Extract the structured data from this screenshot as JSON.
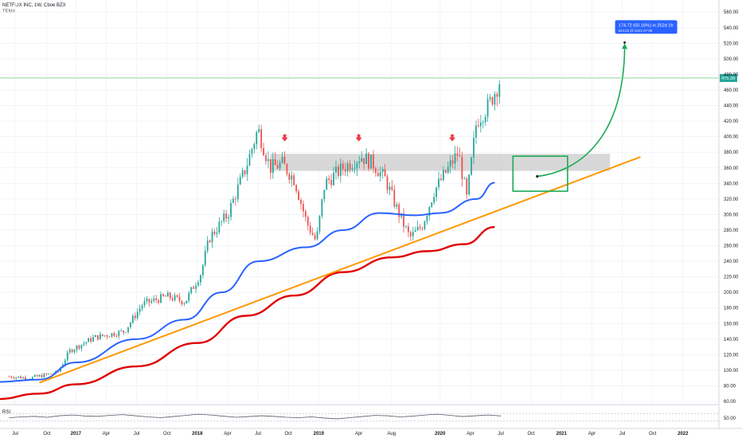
{
  "header": {
    "symbol_line": "NETFLIX INC, 1W, Cboe BZX",
    "indicator": "TEMA"
  },
  "rsi_panel": {
    "label": "RSI",
    "scale_label": "50.00"
  },
  "chart_data": {
    "type": "candlestick",
    "title": "NETFLIX INC, 1W, Cboe BZX",
    "y_axis": {
      "min": 40,
      "max": 570,
      "side": "right",
      "ticks": [
        "560.00",
        "540.00",
        "520.00",
        "500.00",
        "480.00",
        "460.00",
        "440.00",
        "420.00",
        "400.00",
        "380.00",
        "360.00",
        "340.00",
        "320.00",
        "300.00",
        "280.00",
        "260.00",
        "240.00",
        "220.00",
        "200.00",
        "180.00",
        "160.00",
        "140.00",
        "120.00",
        "100.00",
        "80.00",
        "60.00"
      ]
    },
    "x_axis": {
      "ticks": [
        "Jul",
        "Oct",
        "2017",
        "Apr",
        "Jul",
        "Oct",
        "2018",
        "Apr",
        "Jul",
        "Oct",
        "2019",
        "Apr",
        "Aug",
        "2020",
        "Apr",
        "Jul",
        "Oct",
        "2021",
        "Apr",
        "Jul",
        "Oct",
        "2022"
      ],
      "bold_ticks": [
        "2017",
        "2018",
        "2019",
        "2020",
        "2021",
        "2022"
      ]
    },
    "grid": true,
    "last_price_label": "475.39",
    "last_price": 475.39,
    "projection_label": "174.72 (50.16%) in 252d 1h",
    "projection_sublabel": "523.03 @ 2021-07-05",
    "price_series": [
      {
        "t": 2016.45,
        "v": 92
      },
      {
        "t": 2016.62,
        "v": 90
      },
      {
        "t": 2016.85,
        "v": 97
      },
      {
        "t": 2016.95,
        "v": 125
      },
      {
        "t": 2017.15,
        "v": 142
      },
      {
        "t": 2017.4,
        "v": 150
      },
      {
        "t": 2017.55,
        "v": 185
      },
      {
        "t": 2017.75,
        "v": 195
      },
      {
        "t": 2017.9,
        "v": 188
      },
      {
        "t": 2018.03,
        "v": 225
      },
      {
        "t": 2018.1,
        "v": 270
      },
      {
        "t": 2018.25,
        "v": 300
      },
      {
        "t": 2018.4,
        "v": 360
      },
      {
        "t": 2018.5,
        "v": 410
      },
      {
        "t": 2018.6,
        "v": 360
      },
      {
        "t": 2018.7,
        "v": 365
      },
      {
        "t": 2018.8,
        "v": 345
      },
      {
        "t": 2018.9,
        "v": 290
      },
      {
        "t": 2018.98,
        "v": 265
      },
      {
        "t": 2019.05,
        "v": 340
      },
      {
        "t": 2019.2,
        "v": 360
      },
      {
        "t": 2019.35,
        "v": 375
      },
      {
        "t": 2019.45,
        "v": 365
      },
      {
        "t": 2019.55,
        "v": 345
      },
      {
        "t": 2019.65,
        "v": 305
      },
      {
        "t": 2019.75,
        "v": 270
      },
      {
        "t": 2019.85,
        "v": 285
      },
      {
        "t": 2019.95,
        "v": 330
      },
      {
        "t": 2020.05,
        "v": 355
      },
      {
        "t": 2020.15,
        "v": 380
      },
      {
        "t": 2020.22,
        "v": 320
      },
      {
        "t": 2020.3,
        "v": 420
      },
      {
        "t": 2020.4,
        "v": 440
      },
      {
        "t": 2020.5,
        "v": 475
      }
    ],
    "ma_blue": [
      {
        "t": 2016.35,
        "v": 85
      },
      {
        "t": 2016.7,
        "v": 88
      },
      {
        "t": 2017.0,
        "v": 110
      },
      {
        "t": 2017.5,
        "v": 140
      },
      {
        "t": 2017.9,
        "v": 165
      },
      {
        "t": 2018.2,
        "v": 200
      },
      {
        "t": 2018.5,
        "v": 240
      },
      {
        "t": 2018.9,
        "v": 258
      },
      {
        "t": 2019.2,
        "v": 280
      },
      {
        "t": 2019.5,
        "v": 302
      },
      {
        "t": 2019.8,
        "v": 299
      },
      {
        "t": 2020.0,
        "v": 302
      },
      {
        "t": 2020.3,
        "v": 320
      },
      {
        "t": 2020.45,
        "v": 341
      }
    ],
    "ma_red": [
      {
        "t": 2016.35,
        "v": 63
      },
      {
        "t": 2016.7,
        "v": 70
      },
      {
        "t": 2017.0,
        "v": 82
      },
      {
        "t": 2017.5,
        "v": 105
      },
      {
        "t": 2018.0,
        "v": 135
      },
      {
        "t": 2018.4,
        "v": 170
      },
      {
        "t": 2018.8,
        "v": 196
      },
      {
        "t": 2019.2,
        "v": 226
      },
      {
        "t": 2019.6,
        "v": 245
      },
      {
        "t": 2019.9,
        "v": 253
      },
      {
        "t": 2020.2,
        "v": 262
      },
      {
        "t": 2020.45,
        "v": 284
      }
    ],
    "trendline": [
      {
        "t": 2016.7,
        "v": 84
      },
      {
        "t": 2021.65,
        "v": 374
      }
    ],
    "resistance_zone": {
      "t_start": 2018.6,
      "t_end": 2021.4,
      "v_low": 356,
      "v_high": 378
    },
    "resistance_arrows": [
      {
        "t": 2018.72,
        "v": 400
      },
      {
        "t": 2019.33,
        "v": 400
      },
      {
        "t": 2020.1,
        "v": 400
      }
    ],
    "target_box": {
      "t_start": 2020.6,
      "t_end": 2021.05,
      "v_low": 330,
      "v_high": 375
    },
    "projection_path": {
      "from": {
        "t": 2020.8,
        "v": 349
      },
      "to": {
        "t": 2021.52,
        "v": 523
      }
    },
    "colors": {
      "up": "#26a69a",
      "down": "#ef5350",
      "ma_blue": "#2962ff",
      "ma_red": "#e00000",
      "trendline": "#ff9800",
      "projection": "#1aaa55",
      "label_bg": "#2962ff",
      "last_price_bg": "#26a69a",
      "zone": "#c8c8c8"
    },
    "rsi": {
      "y_range": [
        0,
        100
      ],
      "values": [
        48,
        52,
        55,
        50,
        58,
        62,
        57,
        55,
        60,
        64,
        58,
        52,
        48,
        54,
        60,
        66,
        62,
        56,
        50,
        54,
        58,
        55,
        50,
        48,
        52,
        46,
        42,
        48,
        54,
        60,
        58,
        52,
        56,
        62,
        66,
        60,
        54,
        58,
        62,
        57
      ]
    }
  }
}
